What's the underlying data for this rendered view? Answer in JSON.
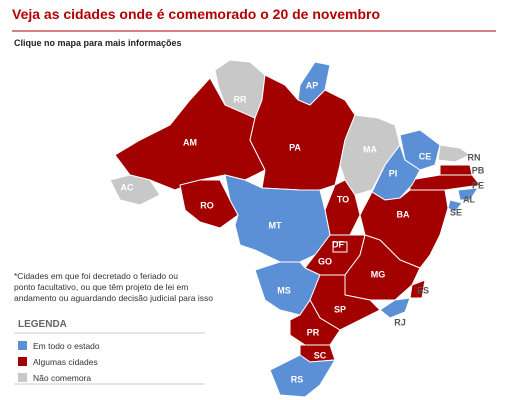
{
  "header": {
    "title": "Veja as cidades onde é comemorado o 20 de novembro",
    "subtitle": "Clique no mapa para mais informações"
  },
  "note": [
    "*Cidades em que foi decretado o feriado ou",
    "ponto facultativo, ou que têm projeto de lei em",
    "andamento ou aguardando decisão judicial para isso"
  ],
  "legend": {
    "title": "LEGENDA",
    "items": [
      {
        "label": "Em todo o estado",
        "color": "#5b8fd6"
      },
      {
        "label": "Algumas cidades",
        "color": "#a30000"
      },
      {
        "label": "Não comemora",
        "color": "#c8c8c8"
      }
    ]
  },
  "states": [
    {
      "label": "RR",
      "category": 2
    },
    {
      "label": "AP",
      "category": 0
    },
    {
      "label": "AM",
      "category": 1
    },
    {
      "label": "PA",
      "category": 1
    },
    {
      "label": "MA",
      "category": 2
    },
    {
      "label": "CE",
      "category": 0
    },
    {
      "label": "RN",
      "category": 2
    },
    {
      "label": "PB",
      "category": 1
    },
    {
      "label": "PE",
      "category": 1
    },
    {
      "label": "AL",
      "category": 0
    },
    {
      "label": "SE",
      "category": 0
    },
    {
      "label": "PI",
      "category": 0
    },
    {
      "label": "AC",
      "category": 2
    },
    {
      "label": "RO",
      "category": 1
    },
    {
      "label": "TO",
      "category": 1
    },
    {
      "label": "BA",
      "category": 1
    },
    {
      "label": "MT",
      "category": 0
    },
    {
      "label": "GO",
      "category": 1
    },
    {
      "label": "DF",
      "category": 1
    },
    {
      "label": "MG",
      "category": 1
    },
    {
      "label": "ES",
      "category": 1
    },
    {
      "label": "MS",
      "category": 0
    },
    {
      "label": "SP",
      "category": 1
    },
    {
      "label": "RJ",
      "category": 0
    },
    {
      "label": "PR",
      "category": 1
    },
    {
      "label": "SC",
      "category": 1
    },
    {
      "label": "RS",
      "category": 0
    }
  ]
}
